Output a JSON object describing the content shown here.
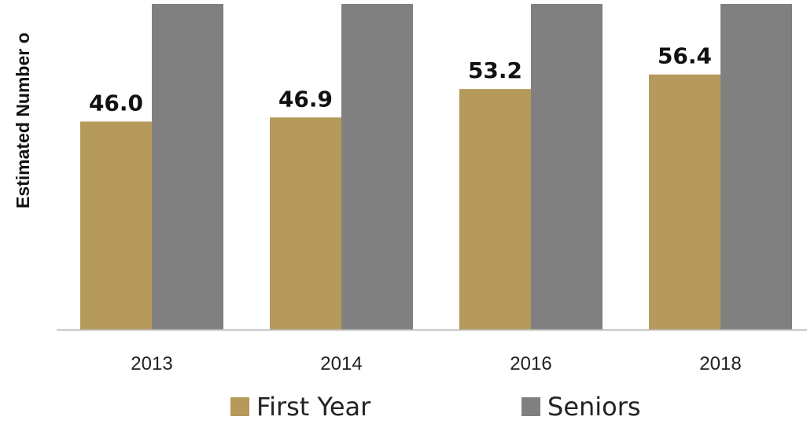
{
  "chart_data": {
    "type": "bar",
    "title": "",
    "xlabel": "",
    "ylabel": "Estimated Number o",
    "categories": [
      "2013",
      "2014",
      "2016",
      "2018"
    ],
    "series": [
      {
        "name": "First Year",
        "color": "#B59A5B",
        "values": [
          46.0,
          46.9,
          53.2,
          56.4
        ],
        "data_labels": [
          "46.0",
          "46.9",
          "53.2",
          "56.4"
        ]
      },
      {
        "name": "Seniors",
        "color": "#808080",
        "values": [
          72.0,
          72.0,
          72.0,
          72.0
        ]
      }
    ],
    "ylim": [
      0,
      72.0
    ],
    "grid": false,
    "legend_position": "bottom"
  }
}
